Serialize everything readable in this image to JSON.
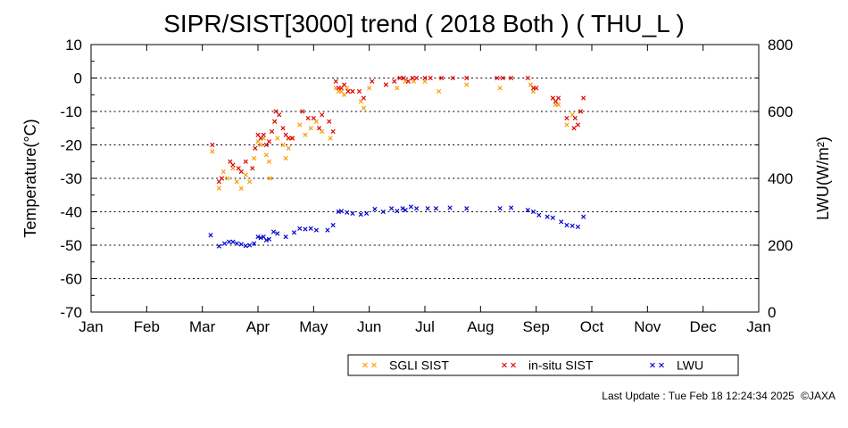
{
  "chart_data": {
    "type": "scatter",
    "title": "SIPR/SIST[3000] trend ( 2018 Both ) ( THU_L )",
    "ylabel": "Temperature(°C)",
    "y2label": "LWU(W/m²)",
    "ylim": [
      -70,
      10
    ],
    "y2lim": [
      0,
      800
    ],
    "yticks": [
      10,
      0,
      -10,
      -20,
      -30,
      -40,
      -50,
      -60,
      -70
    ],
    "y2ticks": [
      800,
      600,
      400,
      200,
      0
    ],
    "xlim": [
      1,
      13
    ],
    "xticks": [
      {
        "x": 1,
        "label": "Jan"
      },
      {
        "x": 2,
        "label": "Feb"
      },
      {
        "x": 3,
        "label": "Mar"
      },
      {
        "x": 4,
        "label": "Apr"
      },
      {
        "x": 5,
        "label": "May"
      },
      {
        "x": 6,
        "label": "Jun"
      },
      {
        "x": 7,
        "label": "Jul"
      },
      {
        "x": 8,
        "label": "Aug"
      },
      {
        "x": 9,
        "label": "Sep"
      },
      {
        "x": 10,
        "label": "Oct"
      },
      {
        "x": 11,
        "label": "Nov"
      },
      {
        "x": 12,
        "label": "Dec"
      },
      {
        "x": 13,
        "label": "Jan"
      }
    ],
    "grid": "horizontal dotted",
    "legend_position": "bottom-right",
    "series": [
      {
        "name": "SGLI SIST",
        "axis": "left",
        "color": "#ff9900",
        "points": [
          [
            3.18,
            -22
          ],
          [
            3.3,
            -33
          ],
          [
            3.38,
            -28
          ],
          [
            3.45,
            -30
          ],
          [
            3.55,
            -27
          ],
          [
            3.62,
            -31
          ],
          [
            3.7,
            -33
          ],
          [
            3.78,
            -29
          ],
          [
            3.85,
            -31
          ],
          [
            3.93,
            -24
          ],
          [
            4.0,
            -19
          ],
          [
            4.05,
            -20
          ],
          [
            4.1,
            -18
          ],
          [
            4.15,
            -23
          ],
          [
            4.2,
            -25
          ],
          [
            4.22,
            -30
          ],
          [
            4.3,
            -13
          ],
          [
            4.35,
            -18
          ],
          [
            4.45,
            -20
          ],
          [
            4.5,
            -24
          ],
          [
            4.55,
            -21
          ],
          [
            4.6,
            -18
          ],
          [
            4.75,
            -14
          ],
          [
            4.85,
            -17
          ],
          [
            4.95,
            -15
          ],
          [
            5.05,
            -13
          ],
          [
            5.15,
            -16
          ],
          [
            5.3,
            -18
          ],
          [
            5.4,
            -3
          ],
          [
            5.45,
            -4
          ],
          [
            5.5,
            -4
          ],
          [
            5.55,
            -5
          ],
          [
            5.6,
            -3
          ],
          [
            5.7,
            -4
          ],
          [
            5.85,
            -7
          ],
          [
            5.9,
            -9
          ],
          [
            6.0,
            -3
          ],
          [
            6.3,
            -2
          ],
          [
            6.5,
            -3
          ],
          [
            6.65,
            -1
          ],
          [
            6.7,
            -1
          ],
          [
            6.8,
            -1
          ],
          [
            7.0,
            -1
          ],
          [
            7.25,
            -4
          ],
          [
            7.75,
            -2
          ],
          [
            8.35,
            -3
          ],
          [
            8.9,
            -2
          ],
          [
            8.95,
            -4
          ],
          [
            9.3,
            -6
          ],
          [
            9.35,
            -8
          ],
          [
            9.4,
            -8
          ],
          [
            9.55,
            -14
          ],
          [
            9.65,
            -11
          ],
          [
            9.8,
            -10
          ]
        ]
      },
      {
        "name": "in-situ SIST",
        "axis": "left",
        "color": "#e00000",
        "points": [
          [
            3.18,
            -20
          ],
          [
            3.3,
            -31
          ],
          [
            3.35,
            -30
          ],
          [
            3.5,
            -25
          ],
          [
            3.55,
            -26
          ],
          [
            3.65,
            -27
          ],
          [
            3.7,
            -28
          ],
          [
            3.78,
            -25
          ],
          [
            3.9,
            -27
          ],
          [
            3.95,
            -21
          ],
          [
            4.0,
            -17
          ],
          [
            4.05,
            -18
          ],
          [
            4.1,
            -17
          ],
          [
            4.15,
            -20
          ],
          [
            4.2,
            -19
          ],
          [
            4.25,
            -16
          ],
          [
            4.3,
            -13
          ],
          [
            4.32,
            -10
          ],
          [
            4.38,
            -11
          ],
          [
            4.45,
            -15
          ],
          [
            4.5,
            -17
          ],
          [
            4.55,
            -18
          ],
          [
            4.62,
            -18
          ],
          [
            4.8,
            -10
          ],
          [
            4.9,
            -12
          ],
          [
            5.0,
            -12
          ],
          [
            5.1,
            -15
          ],
          [
            5.15,
            -11
          ],
          [
            5.28,
            -13
          ],
          [
            5.35,
            -16
          ],
          [
            5.4,
            -1
          ],
          [
            5.45,
            -3
          ],
          [
            5.5,
            -3
          ],
          [
            5.55,
            -2
          ],
          [
            5.62,
            -4
          ],
          [
            5.7,
            -4
          ],
          [
            5.82,
            -4
          ],
          [
            5.9,
            -6
          ],
          [
            6.05,
            -1
          ],
          [
            6.3,
            -2
          ],
          [
            6.45,
            -1
          ],
          [
            6.55,
            0
          ],
          [
            6.62,
            0
          ],
          [
            6.7,
            -1
          ],
          [
            6.78,
            0
          ],
          [
            6.85,
            0
          ],
          [
            7.0,
            0
          ],
          [
            7.1,
            0
          ],
          [
            7.3,
            0
          ],
          [
            7.5,
            0
          ],
          [
            7.75,
            0
          ],
          [
            8.3,
            0
          ],
          [
            8.4,
            0
          ],
          [
            8.55,
            0
          ],
          [
            8.85,
            0
          ],
          [
            8.95,
            -3
          ],
          [
            9.0,
            -3
          ],
          [
            9.3,
            -6
          ],
          [
            9.35,
            -7
          ],
          [
            9.4,
            -6
          ],
          [
            9.55,
            -12
          ],
          [
            9.7,
            -12
          ],
          [
            9.8,
            -10
          ],
          [
            9.85,
            -6
          ],
          [
            9.75,
            -14
          ],
          [
            9.68,
            -15
          ]
        ]
      },
      {
        "name": "LWU",
        "axis": "right",
        "color": "#0000d0",
        "points": [
          [
            3.15,
            230
          ],
          [
            3.3,
            197
          ],
          [
            3.4,
            205
          ],
          [
            3.48,
            210
          ],
          [
            3.55,
            210
          ],
          [
            3.62,
            205
          ],
          [
            3.7,
            203
          ],
          [
            3.78,
            198
          ],
          [
            3.85,
            200
          ],
          [
            3.93,
            205
          ],
          [
            4.0,
            225
          ],
          [
            4.05,
            222
          ],
          [
            4.1,
            225
          ],
          [
            4.15,
            215
          ],
          [
            4.2,
            218
          ],
          [
            4.28,
            240
          ],
          [
            4.35,
            235
          ],
          [
            4.5,
            225
          ],
          [
            4.65,
            238
          ],
          [
            4.75,
            250
          ],
          [
            4.85,
            248
          ],
          [
            4.95,
            250
          ],
          [
            5.05,
            245
          ],
          [
            5.25,
            245
          ],
          [
            5.35,
            260
          ],
          [
            5.45,
            300
          ],
          [
            5.5,
            302
          ],
          [
            5.6,
            298
          ],
          [
            5.7,
            295
          ],
          [
            5.85,
            292
          ],
          [
            5.95,
            295
          ],
          [
            6.1,
            308
          ],
          [
            6.25,
            300
          ],
          [
            6.4,
            310
          ],
          [
            6.5,
            302
          ],
          [
            6.6,
            310
          ],
          [
            6.65,
            305
          ],
          [
            6.75,
            315
          ],
          [
            6.85,
            310
          ],
          [
            7.05,
            310
          ],
          [
            7.2,
            310
          ],
          [
            7.45,
            312
          ],
          [
            7.75,
            310
          ],
          [
            8.35,
            310
          ],
          [
            8.55,
            312
          ],
          [
            8.85,
            305
          ],
          [
            8.95,
            300
          ],
          [
            9.05,
            290
          ],
          [
            9.2,
            285
          ],
          [
            9.3,
            282
          ],
          [
            9.45,
            270
          ],
          [
            9.55,
            260
          ],
          [
            9.65,
            258
          ],
          [
            9.75,
            255
          ],
          [
            9.85,
            285
          ]
        ]
      }
    ]
  },
  "legend": {
    "items": [
      {
        "label": "SGLI SIST",
        "color": "#ff9900"
      },
      {
        "label": "in-situ SIST",
        "color": "#e00000"
      },
      {
        "label": "LWU",
        "color": "#0000d0"
      }
    ]
  },
  "footer": {
    "last_update": "Last Update : Tue Feb 18 12:24:34 2025",
    "copyright": "©JAXA"
  }
}
